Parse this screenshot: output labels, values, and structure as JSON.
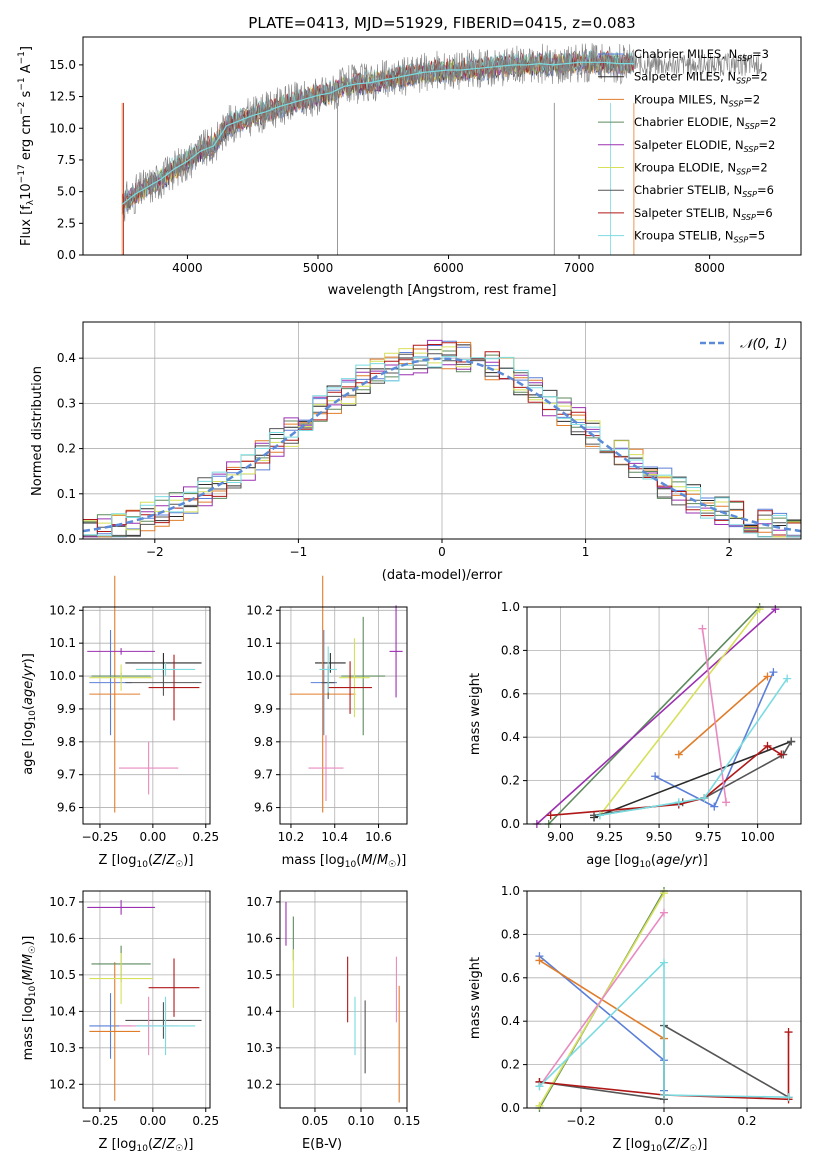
{
  "chart_data": [
    {
      "type": "line",
      "title": "PLATE=0413, MJD=51929, FIBERID=0415, z=0.083",
      "xlabel": "wavelength [Angstrom, rest frame]",
      "ylabel": "Flux [f_λ10^-17 erg cm^-2 s^-1 A^-1]",
      "xlim": [
        3200,
        8700
      ],
      "ylim": [
        0,
        17.2
      ],
      "xticks": [
        4000,
        5000,
        6000,
        7000,
        8000
      ],
      "yticks": [
        0.0,
        2.5,
        5.0,
        7.5,
        10.0,
        12.5,
        15.0
      ],
      "grid": false,
      "legend_position": "upper right",
      "legend": [
        {
          "label": "Chabrier MILES, N",
          "nssp": "=3",
          "color": "#5b7fd8"
        },
        {
          "label": "Salpeter MILES, N",
          "nssp": "=2",
          "color": "#2a2a2a"
        },
        {
          "label": "Kroupa MILES, N",
          "nssp": "=2",
          "color": "#e07d2a"
        },
        {
          "label": "Chabrier ELODIE, N",
          "nssp": "=2",
          "color": "#5e8a5e"
        },
        {
          "label": "Salpeter ELODIE, N",
          "nssp": "=2",
          "color": "#9b30b0"
        },
        {
          "label": "Kroupa ELODIE, N",
          "nssp": "=2",
          "color": "#d6e05a"
        },
        {
          "label": "Chabrier STELIB, N",
          "nssp": "=6",
          "color": "#555555"
        },
        {
          "label": "Salpeter STELIB, N",
          "nssp": "=6",
          "color": "#b01818"
        },
        {
          "label": "Kroupa STELIB, N",
          "nssp": "=5",
          "color": "#7adbe0"
        }
      ],
      "series": [
        {
          "name": "data",
          "color": "#808080",
          "x": [
            3500,
            3600,
            3700,
            3800,
            3900,
            4000,
            4100,
            4200,
            4300,
            4400,
            4500,
            4600,
            4700,
            4800,
            4900,
            5000,
            5100,
            5200,
            5300,
            5400,
            5500,
            5600,
            5700,
            5800,
            5900,
            6000,
            6100,
            6200,
            6300,
            6400,
            6500,
            6600,
            6700,
            6800,
            6900,
            7000,
            7100,
            7200,
            7300,
            7400
          ],
          "y": [
            4.0,
            4.8,
            5.4,
            6.0,
            6.8,
            7.4,
            8.2,
            8.6,
            10.2,
            10.6,
            11.0,
            11.3,
            11.7,
            12.0,
            12.3,
            12.6,
            12.8,
            13.3,
            13.5,
            13.6,
            13.8,
            14.0,
            14.2,
            14.4,
            14.5,
            14.6,
            14.6,
            14.7,
            14.8,
            14.9,
            15.0,
            15.0,
            15.1,
            15.0,
            15.1,
            15.2,
            15.2,
            15.2,
            15.1,
            15.1
          ]
        }
      ]
    },
    {
      "type": "line",
      "xlabel": "(data-model)/error",
      "ylabel": "Normed distribution",
      "xlim": [
        -2.5,
        2.5
      ],
      "ylim": [
        0,
        0.48
      ],
      "xticks": [
        -2,
        -1,
        0,
        1,
        2
      ],
      "yticks": [
        0.0,
        0.1,
        0.2,
        0.3,
        0.4
      ],
      "grid": true,
      "legend_position": "upper right",
      "legend": [
        {
          "label": "𝒩(0, 1)",
          "color": "#5b8bd8",
          "style": "dashed"
        }
      ],
      "histogram_bin_width": 0.1,
      "histogram_colors": [
        "#5b7fd8",
        "#2a2a2a",
        "#e07d2a",
        "#5e8a5e",
        "#9b30b0",
        "#d6e05a",
        "#555555",
        "#b01818",
        "#7adbe0"
      ]
    },
    {
      "type": "scatter",
      "xlabel": "Z [log10(Z/Z☉)]",
      "ylabel": "age  [log10(age/yr)]",
      "xlim": [
        -0.33,
        0.27
      ],
      "ylim": [
        9.55,
        10.21
      ],
      "xticks": [
        -0.25,
        0.0,
        0.25
      ],
      "yticks": [
        9.6,
        9.7,
        9.8,
        9.9,
        10.0,
        10.1,
        10.2
      ],
      "grid": true,
      "points": [
        {
          "x": -0.2,
          "y": 9.98,
          "xerr": 0.1,
          "yerr": 0.16,
          "color": "#5b7fd8"
        },
        {
          "x": 0.05,
          "y": 10.04,
          "xerr": 0.18,
          "yerr": 0.03,
          "color": "#2a2a2a"
        },
        {
          "x": -0.18,
          "y": 9.945,
          "xerr": 0.12,
          "yerr": 0.36,
          "color": "#e07d2a"
        },
        {
          "x": -0.15,
          "y": 10.0,
          "xerr": 0.14,
          "yerr": 0.01,
          "color": "#5e8a5e"
        },
        {
          "x": -0.15,
          "y": 10.075,
          "xerr": 0.16,
          "yerr": 0.01,
          "color": "#9b30b0"
        },
        {
          "x": -0.15,
          "y": 9.995,
          "xerr": 0.15,
          "yerr": 0.04,
          "color": "#d6e05a"
        },
        {
          "x": 0.05,
          "y": 9.98,
          "xerr": 0.18,
          "yerr": 0.04,
          "color": "#555555"
        },
        {
          "x": 0.1,
          "y": 9.965,
          "xerr": 0.12,
          "yerr": 0.1,
          "color": "#b01818"
        },
        {
          "x": -0.02,
          "y": 9.72,
          "xerr": 0.14,
          "yerr": 0.08,
          "color": "#e88ac0"
        },
        {
          "x": 0.06,
          "y": 10.02,
          "xerr": 0.14,
          "yerr": 0.02,
          "color": "#7adbe0"
        }
      ]
    },
    {
      "type": "scatter",
      "xlabel": "mass [log10(M/M☉)]",
      "xlim": [
        10.15,
        10.73
      ],
      "ylim": [
        9.55,
        10.21
      ],
      "xticks": [
        10.2,
        10.4,
        10.6
      ],
      "yticks": [
        9.6,
        9.7,
        9.8,
        9.9,
        10.0,
        10.1,
        10.2
      ],
      "grid": true,
      "points": [
        {
          "x": 10.35,
          "y": 9.98,
          "xerr": 0.06,
          "yerr": 0.16,
          "color": "#5b7fd8"
        },
        {
          "x": 10.38,
          "y": 10.04,
          "xerr": 0.07,
          "yerr": 0.03,
          "color": "#2a2a2a"
        },
        {
          "x": 10.345,
          "y": 9.945,
          "xerr": 0.15,
          "yerr": 0.36,
          "color": "#e07d2a"
        },
        {
          "x": 10.53,
          "y": 10.0,
          "xerr": 0.1,
          "yerr": 0.18,
          "color": "#5e8a5e"
        },
        {
          "x": 10.68,
          "y": 10.075,
          "xerr": 0.03,
          "yerr": 0.14,
          "color": "#9b30b0"
        },
        {
          "x": 10.49,
          "y": 9.995,
          "xerr": 0.07,
          "yerr": 0.12,
          "color": "#d6e05a"
        },
        {
          "x": 10.37,
          "y": 9.98,
          "xerr": 0.03,
          "yerr": 0.05,
          "color": "#555555"
        },
        {
          "x": 10.47,
          "y": 9.965,
          "xerr": 0.1,
          "yerr": 0.08,
          "color": "#b01818"
        },
        {
          "x": 10.36,
          "y": 9.72,
          "xerr": 0.08,
          "yerr": 0.1,
          "color": "#e88ac0"
        },
        {
          "x": 10.37,
          "y": 10.02,
          "xerr": 0.04,
          "yerr": 0.07,
          "color": "#7adbe0"
        }
      ]
    },
    {
      "type": "line",
      "xlabel": "age  [log10(age/yr)]",
      "ylabel": "mass weight",
      "xlim": [
        8.83,
        10.22
      ],
      "ylim": [
        0,
        1.0
      ],
      "xticks": [
        9.0,
        9.25,
        9.5,
        9.75,
        10.0
      ],
      "yticks": [
        0.0,
        0.2,
        0.4,
        0.6,
        0.8,
        1.0
      ],
      "grid": true,
      "series": [
        {
          "color": "#5b7fd8",
          "x": [
            9.48,
            9.78,
            10.08
          ],
          "y": [
            0.22,
            0.08,
            0.7
          ]
        },
        {
          "color": "#2a2a2a",
          "x": [
            9.17,
            10.17
          ],
          "y": [
            0.03,
            0.38
          ]
        },
        {
          "color": "#e07d2a",
          "x": [
            9.6,
            10.05
          ],
          "y": [
            0.32,
            0.68
          ]
        },
        {
          "color": "#5e8a5e",
          "x": [
            8.94,
            10.01
          ],
          "y": [
            0.0,
            1.0
          ]
        },
        {
          "color": "#9b30b0",
          "x": [
            8.88,
            10.09
          ],
          "y": [
            0.0,
            0.99
          ]
        },
        {
          "color": "#d6e05a",
          "x": [
            9.2,
            10.01
          ],
          "y": [
            0.04,
            0.99
          ]
        },
        {
          "color": "#555555",
          "x": [
            9.17,
            9.62,
            9.73,
            10.13,
            10.17
          ],
          "y": [
            0.04,
            0.1,
            0.12,
            0.32,
            0.38
          ]
        },
        {
          "color": "#b01818",
          "x": [
            8.95,
            9.6,
            9.73,
            10.05,
            10.12
          ],
          "y": [
            0.04,
            0.09,
            0.12,
            0.36,
            0.32
          ]
        },
        {
          "color": "#e88ac0",
          "x": [
            9.72,
            9.84
          ],
          "y": [
            0.9,
            0.1
          ]
        },
        {
          "color": "#7adbe0",
          "x": [
            9.2,
            9.6,
            9.73,
            10.15
          ],
          "y": [
            0.04,
            0.1,
            0.12,
            0.67
          ]
        }
      ]
    },
    {
      "type": "scatter",
      "xlabel": "Z [log10(Z/Z☉)]",
      "ylabel": "mass [log10(M/M☉)]",
      "xlim": [
        -0.33,
        0.27
      ],
      "ylim": [
        10.135,
        10.73
      ],
      "xticks": [
        -0.25,
        0.0,
        0.25
      ],
      "yticks": [
        10.2,
        10.3,
        10.4,
        10.5,
        10.6,
        10.7
      ],
      "grid": true,
      "points": [
        {
          "x": -0.2,
          "y": 10.36,
          "xerr": 0.1,
          "yerr": 0.09,
          "color": "#5b7fd8"
        },
        {
          "x": 0.05,
          "y": 10.375,
          "xerr": 0.18,
          "yerr": 0.05,
          "color": "#555555"
        },
        {
          "x": -0.18,
          "y": 10.345,
          "xerr": 0.12,
          "yerr": 0.19,
          "color": "#e07d2a"
        },
        {
          "x": -0.15,
          "y": 10.53,
          "xerr": 0.14,
          "yerr": 0.05,
          "color": "#5e8a5e"
        },
        {
          "x": -0.15,
          "y": 10.685,
          "xerr": 0.16,
          "yerr": 0.02,
          "color": "#9b30b0"
        },
        {
          "x": -0.15,
          "y": 10.49,
          "xerr": 0.15,
          "yerr": 0.07,
          "color": "#d6e05a"
        },
        {
          "x": 0.1,
          "y": 10.465,
          "xerr": 0.12,
          "yerr": 0.08,
          "color": "#b01818"
        },
        {
          "x": -0.02,
          "y": 10.36,
          "xerr": 0.14,
          "yerr": 0.08,
          "color": "#e88ac0"
        },
        {
          "x": 0.06,
          "y": 10.36,
          "xerr": 0.14,
          "yerr": 0.08,
          "color": "#7adbe0"
        }
      ]
    },
    {
      "type": "scatter",
      "xlabel": "E(B-V)",
      "xlim": [
        0.012,
        0.15
      ],
      "ylim": [
        10.135,
        10.73
      ],
      "xticks": [
        0.05,
        0.1,
        0.15
      ],
      "yticks": [
        10.2,
        10.3,
        10.4,
        10.5,
        10.6,
        10.7
      ],
      "grid": true,
      "points": [
        {
          "x": 0.0185,
          "y": 10.64,
          "yerr": 0.06,
          "color": "#9b30b0"
        },
        {
          "x": 0.0265,
          "y": 10.6,
          "yerr": 0.06,
          "color": "#5e8a5e"
        },
        {
          "x": 0.0265,
          "y": 10.49,
          "yerr": 0.08,
          "color": "#d6e05a"
        },
        {
          "x": 0.0855,
          "y": 10.46,
          "yerr": 0.09,
          "color": "#b01818"
        },
        {
          "x": 0.0935,
          "y": 10.36,
          "yerr": 0.08,
          "color": "#7adbe0"
        },
        {
          "x": 0.1045,
          "y": 10.33,
          "yerr": 0.1,
          "color": "#555555"
        },
        {
          "x": 0.1385,
          "y": 10.46,
          "yerr": 0.09,
          "color": "#e88ac0"
        },
        {
          "x": 0.1415,
          "y": 10.31,
          "yerr": 0.16,
          "color": "#e07d2a"
        }
      ]
    },
    {
      "type": "line",
      "xlabel": "Z [log10(Z/Z☉)]",
      "ylabel": "mass weight",
      "xlim": [
        -0.33,
        0.33
      ],
      "ylim": [
        0,
        1.0
      ],
      "xticks": [
        -0.2,
        0.0,
        0.2
      ],
      "yticks": [
        0.0,
        0.2,
        0.4,
        0.6,
        0.8,
        1.0
      ],
      "grid": true,
      "series": [
        {
          "color": "#5b7fd8",
          "x": [
            -0.3,
            0.0,
            0.0
          ],
          "y": [
            0.7,
            0.22,
            0.08
          ]
        },
        {
          "color": "#555555",
          "x": [
            -0.3,
            0.0,
            0.0,
            0.3,
            0.3
          ],
          "y": [
            0.12,
            0.04,
            0.38,
            0.05,
            0.05
          ]
        },
        {
          "color": "#e07d2a",
          "x": [
            -0.3,
            0.0
          ],
          "y": [
            0.68,
            0.32
          ]
        },
        {
          "color": "#5e8a5e",
          "x": [
            -0.3,
            0.0
          ],
          "y": [
            0.0,
            1.0
          ]
        },
        {
          "color": "#d6e05a",
          "x": [
            -0.3,
            0.0
          ],
          "y": [
            0.01,
            0.99
          ]
        },
        {
          "color": "#e88ac0",
          "x": [
            -0.3,
            0.0
          ],
          "y": [
            0.1,
            0.9
          ]
        },
        {
          "color": "#b01818",
          "x": [
            -0.3,
            0.0,
            0.3,
            0.3
          ],
          "y": [
            0.12,
            0.06,
            0.04,
            0.35
          ]
        },
        {
          "color": "#7adbe0",
          "x": [
            -0.3,
            0.0,
            0.0,
            0.3
          ],
          "y": [
            0.1,
            0.67,
            0.06,
            0.05
          ]
        }
      ]
    }
  ]
}
